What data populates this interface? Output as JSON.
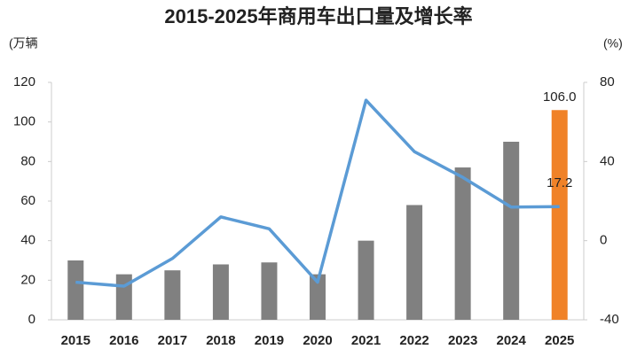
{
  "chart_data": {
    "type": "bar-line",
    "title": "2015-2025年商用车出口量及增长率",
    "y_label": "(万辆",
    "y2_label": "(%)",
    "categories": [
      "2015",
      "2016",
      "2017",
      "2018",
      "2019",
      "2020",
      "2021",
      "2022",
      "2023",
      "2024",
      "2025"
    ],
    "series": [
      {
        "type": "bar",
        "colors": [
          "#808080",
          "#808080",
          "#808080",
          "#808080",
          "#808080",
          "#808080",
          "#808080",
          "#808080",
          "#808080",
          "#808080",
          "#f08228"
        ],
        "values": [
          30,
          23,
          25,
          28,
          29,
          23,
          40,
          58,
          77,
          90,
          106
        ],
        "value_labels": [
          null,
          null,
          null,
          null,
          null,
          null,
          null,
          null,
          null,
          null,
          "106.0"
        ]
      },
      {
        "type": "line",
        "axis": "y2",
        "color": "#5b9bd5",
        "values": [
          -21,
          -23,
          -9,
          12,
          6,
          -21,
          71,
          45,
          32,
          17,
          17.2
        ],
        "value_labels": [
          null,
          null,
          null,
          null,
          null,
          null,
          null,
          null,
          null,
          null,
          "17.2"
        ]
      }
    ],
    "ylim": [
      0,
      120
    ],
    "yticks": [
      0,
      20,
      40,
      60,
      80,
      100,
      120
    ],
    "y2lim": [
      -40,
      80
    ],
    "y2ticks": [
      -40,
      0,
      40,
      80
    ]
  }
}
